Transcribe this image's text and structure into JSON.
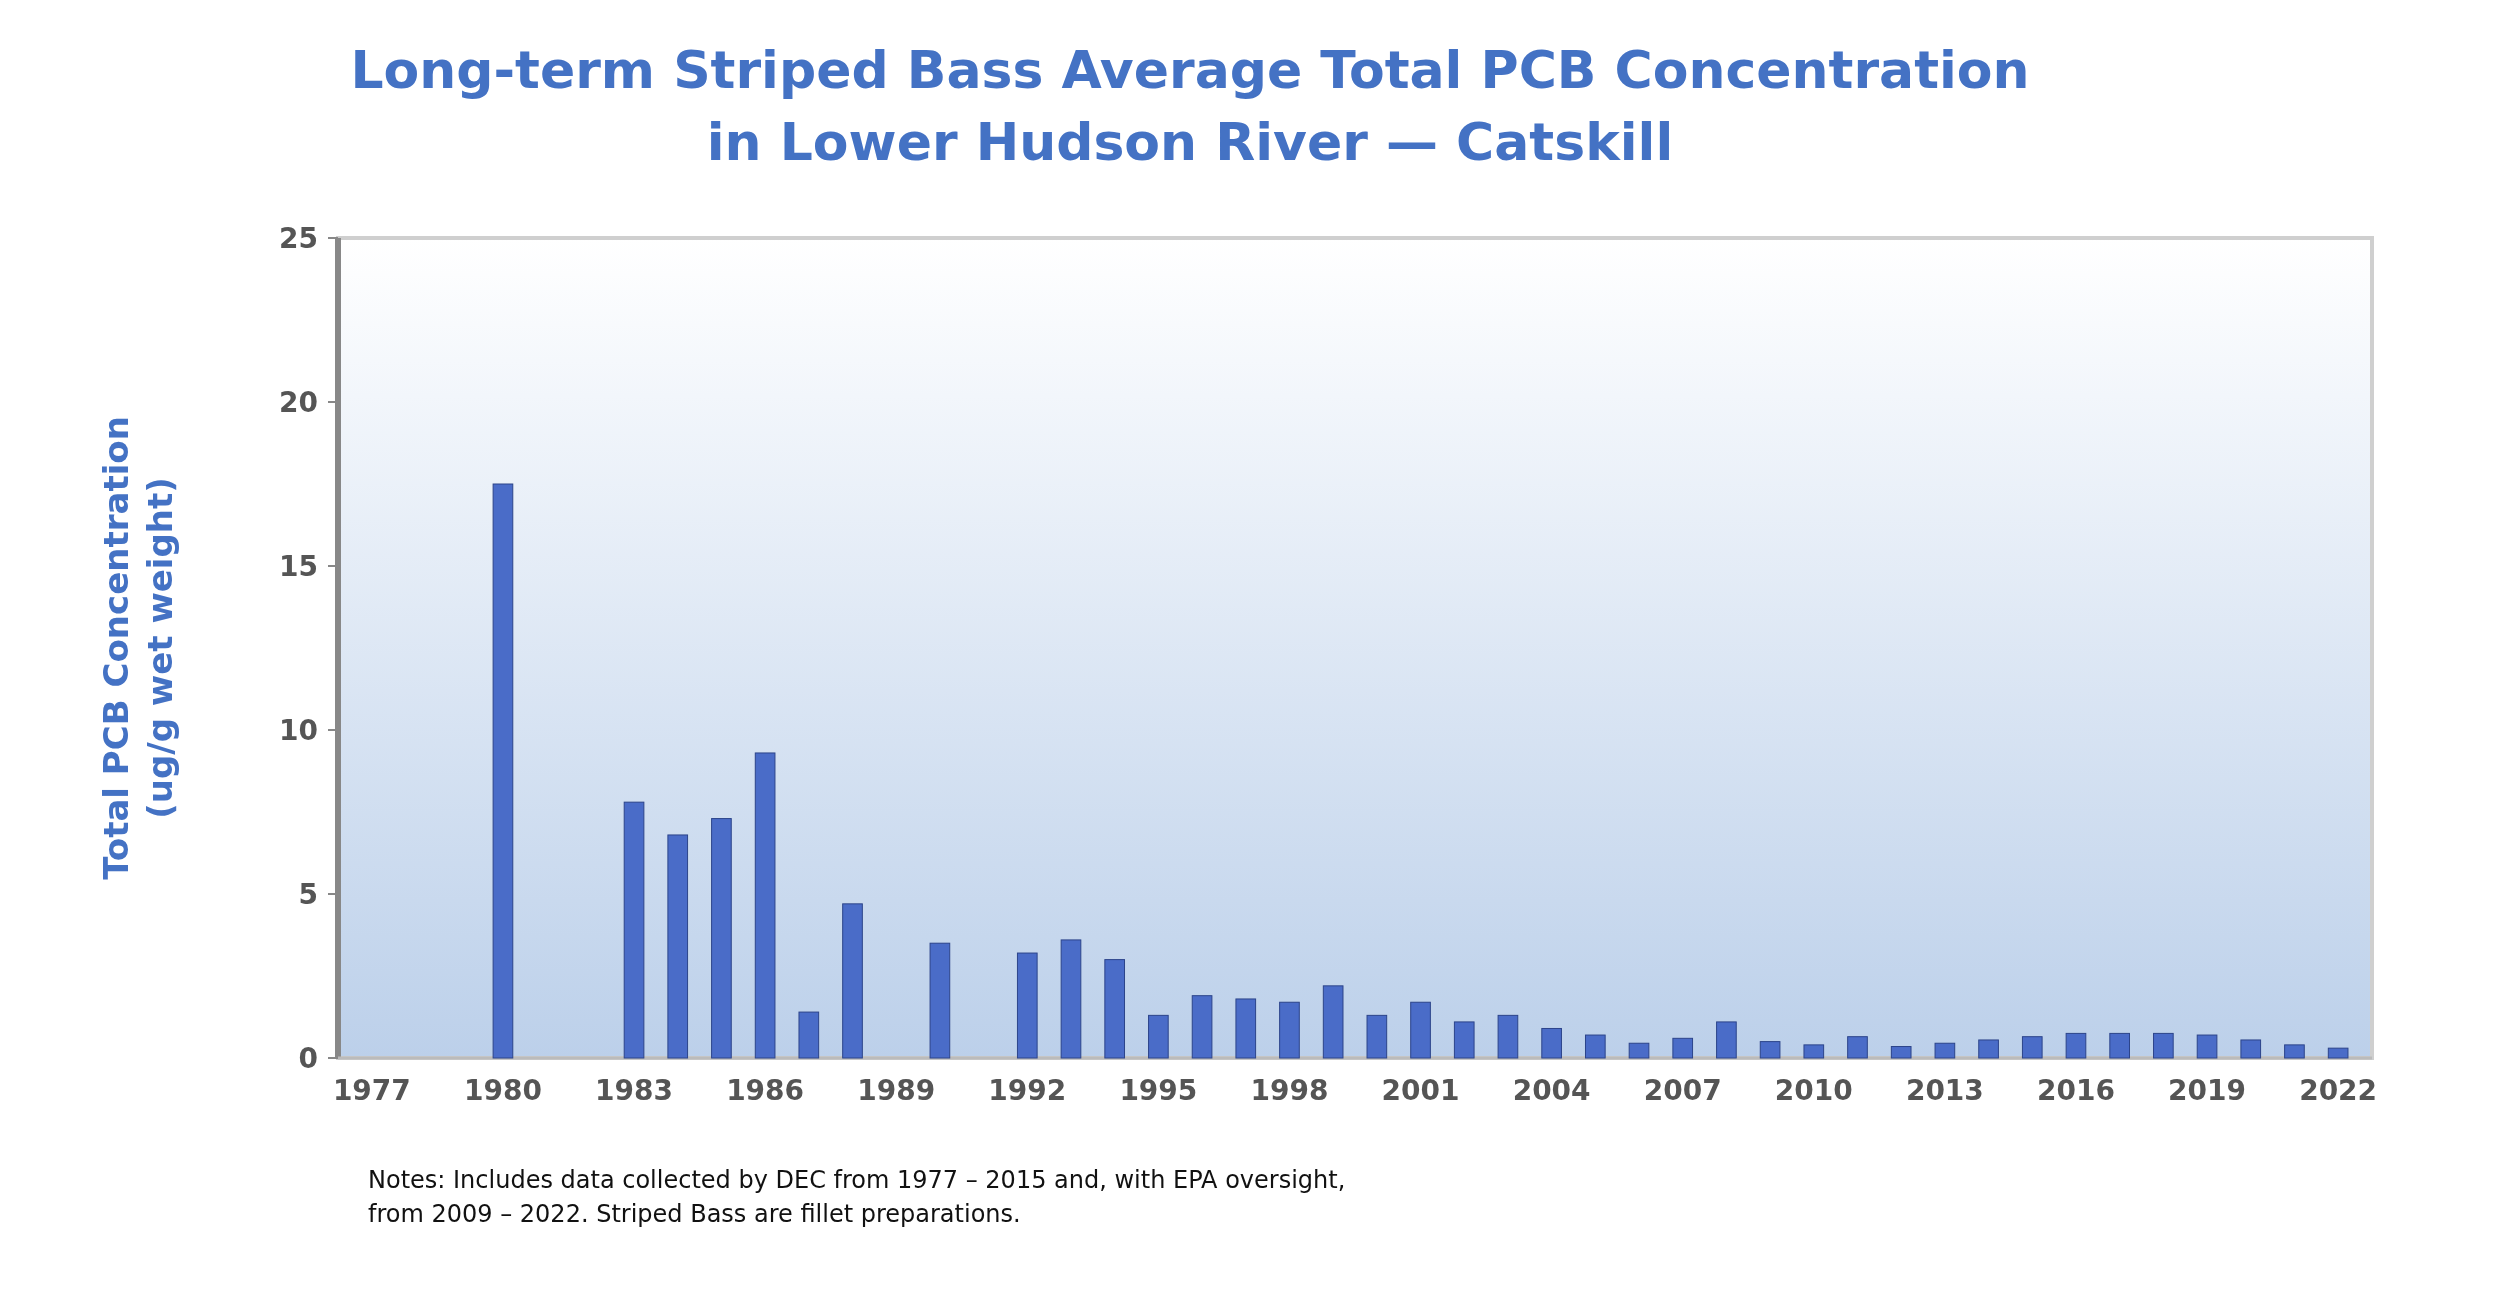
{
  "chart_data": {
    "type": "bar",
    "title": "Long-term Striped Bass Average Total PCB Concentration\nin Lower Hudson River — Catskill",
    "ylabel": "Total PCB Concentration\n(ug/g wet weight)",
    "categories": [
      "1977",
      null,
      null,
      "1980",
      null,
      null,
      "1983",
      null,
      null,
      "1986",
      null,
      null,
      "1989",
      null,
      null,
      "1992",
      null,
      null,
      "1995",
      null,
      null,
      "1998",
      null,
      null,
      "2001",
      null,
      null,
      "2004",
      null,
      null,
      "2007",
      null,
      null,
      "2010",
      null,
      null,
      "2013",
      null,
      null,
      "2016",
      null,
      null,
      "2019",
      null,
      null,
      "2022"
    ],
    "values": [
      null,
      null,
      null,
      17.5,
      null,
      null,
      7.8,
      6.8,
      7.3,
      9.3,
      1.4,
      4.7,
      null,
      3.5,
      null,
      3.2,
      3.6,
      3.0,
      1.3,
      1.9,
      1.8,
      1.7,
      2.2,
      1.3,
      1.7,
      1.1,
      1.3,
      0.9,
      0.7,
      0.45,
      0.6,
      1.1,
      0.5,
      0.4,
      0.65,
      0.35,
      0.45,
      0.55,
      0.65,
      0.75,
      0.75,
      0.75,
      0.7,
      0.55,
      0.4,
      0.3
    ],
    "color": "#4a6cc8",
    "ylim": [
      0,
      25
    ],
    "yticks": [
      0,
      5,
      10,
      15,
      20,
      25
    ],
    "annotations": [
      "Notes: Includes data collected by DEC from 1977 – 2015 and, with EPA oversight,\nfrom 2009 – 2022. Striped Bass are fillet preparations."
    ]
  }
}
